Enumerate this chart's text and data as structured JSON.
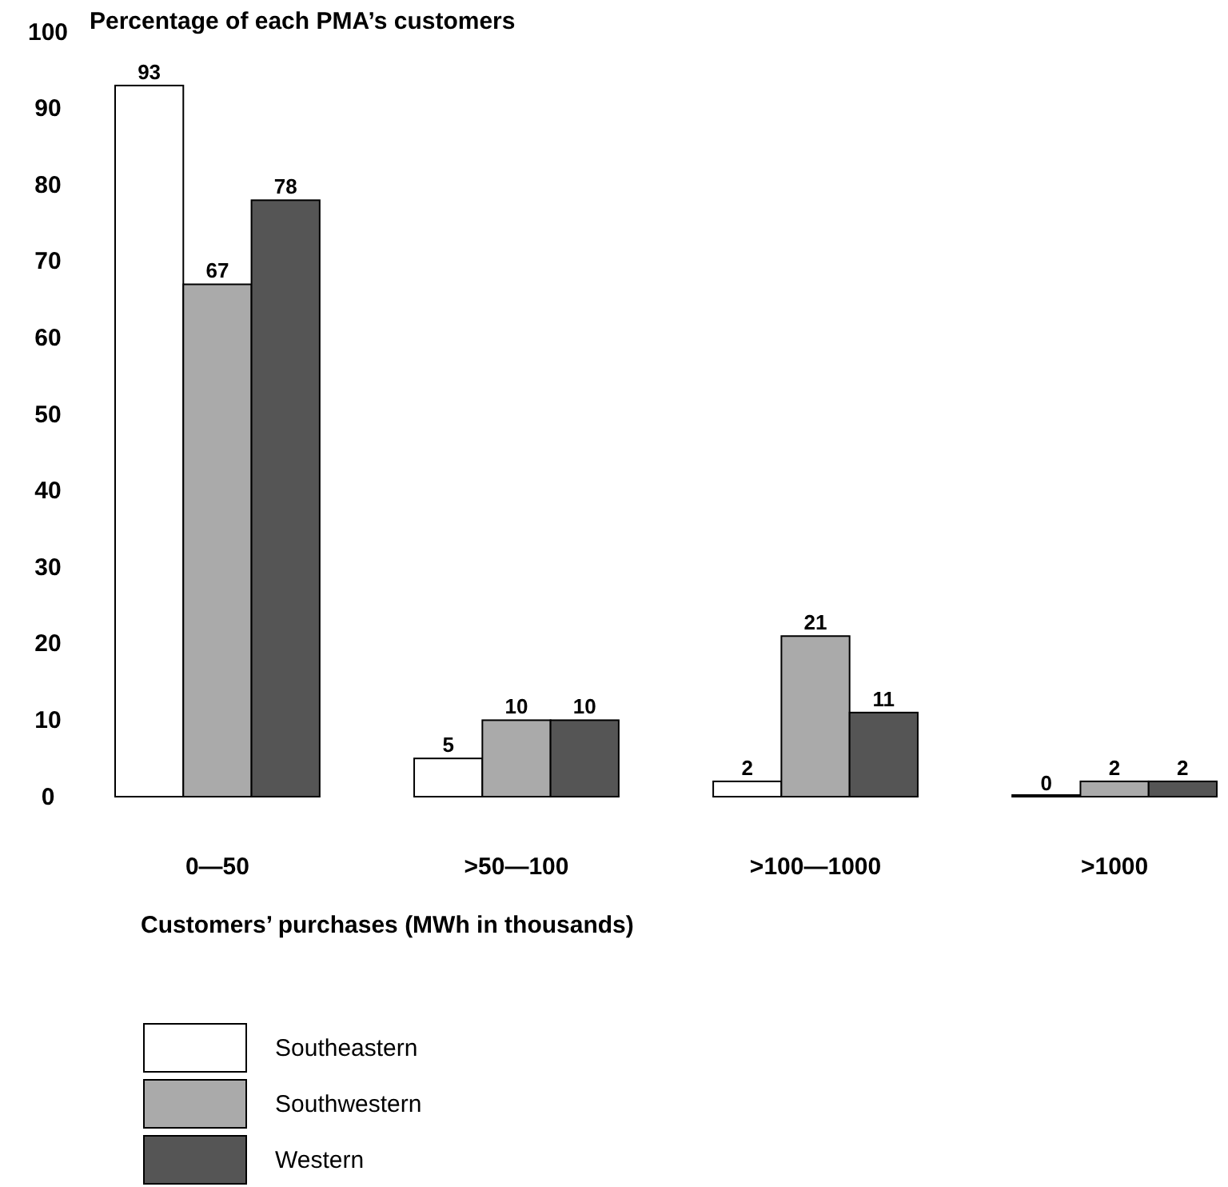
{
  "chart_data": {
    "type": "bar",
    "title": "Percentage of each PMA’s customers",
    "xlabel": "Customers’ purchases (MWh in thousands)",
    "categories": [
      "0—50",
      ">50—100",
      ">100—1000",
      ">1000"
    ],
    "series": [
      {
        "name": "Southeastern",
        "color": "#ffffff",
        "values": [
          93,
          5,
          2,
          0
        ]
      },
      {
        "name": "Southwestern",
        "color": "#aaaaaa",
        "values": [
          67,
          10,
          21,
          2
        ]
      },
      {
        "name": "Western",
        "color": "#555555",
        "values": [
          78,
          10,
          11,
          2
        ]
      }
    ],
    "ylim": [
      0,
      100
    ],
    "yticks": [
      0,
      10,
      20,
      30,
      40,
      50,
      60,
      70,
      80,
      90,
      100
    ],
    "grid": false,
    "data_labels": true,
    "legend": "bottom left"
  }
}
